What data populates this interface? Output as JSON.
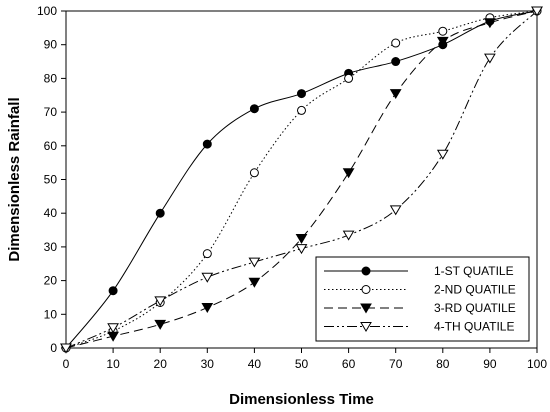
{
  "chart_data": {
    "type": "line",
    "title": "",
    "xlabel": "Dimensionless Time",
    "ylabel": "Dimensionless Rainfall",
    "xlim": [
      0,
      100
    ],
    "ylim": [
      0,
      100
    ],
    "xticks": [
      0,
      10,
      20,
      30,
      40,
      50,
      60,
      70,
      80,
      90,
      100
    ],
    "yticks": [
      0,
      10,
      20,
      30,
      40,
      50,
      60,
      70,
      80,
      90,
      100
    ],
    "grid": false,
    "legend_position": "bottom-right",
    "series": [
      {
        "name": "1-ST QUATILE",
        "line_style": "solid",
        "marker": "filled-circle",
        "color": "#000000",
        "x": [
          0,
          10,
          20,
          30,
          40,
          50,
          60,
          70,
          80,
          90,
          100
        ],
        "y": [
          0,
          17,
          40,
          60.5,
          71,
          75.5,
          81.5,
          85,
          90,
          97,
          100
        ]
      },
      {
        "name": "2-ND QUATILE",
        "line_style": "dotted",
        "marker": "open-circle",
        "color": "#000000",
        "x": [
          0,
          10,
          20,
          30,
          40,
          50,
          60,
          70,
          80,
          90,
          100
        ],
        "y": [
          0,
          5,
          13.5,
          28,
          52,
          70.5,
          80,
          90.5,
          94,
          98,
          100
        ]
      },
      {
        "name": "3-RD QUATILE",
        "line_style": "dashed",
        "marker": "filled-triangle-down",
        "color": "#000000",
        "x": [
          0,
          10,
          20,
          30,
          40,
          50,
          60,
          70,
          80,
          90,
          100
        ],
        "y": [
          0,
          3.5,
          7,
          12,
          19.5,
          32.5,
          52,
          75.5,
          91,
          96.5,
          100
        ]
      },
      {
        "name": "4-TH QUATILE",
        "line_style": "dash-dot-dot",
        "marker": "open-triangle-down",
        "color": "#000000",
        "x": [
          0,
          10,
          20,
          30,
          40,
          50,
          60,
          70,
          80,
          90,
          100
        ],
        "y": [
          0,
          6,
          14,
          21,
          25.5,
          29.5,
          33.5,
          41,
          57.5,
          86,
          100
        ]
      }
    ]
  }
}
